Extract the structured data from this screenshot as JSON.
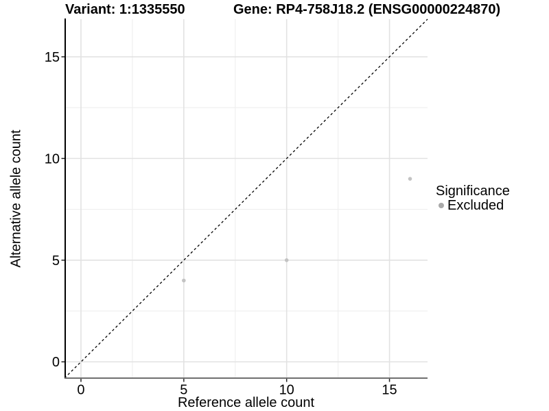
{
  "chart_data": {
    "type": "scatter",
    "title_left": "Variant: 1:1335550",
    "title_right": "Gene: RP4-758J18.2 (ENSG00000224870)",
    "xlabel": "Reference allele count",
    "ylabel": "Alternative allele count",
    "xlim": [
      -0.8,
      16.85
    ],
    "ylim": [
      -0.8,
      16.85
    ],
    "x_major_ticks": [
      0,
      5,
      10,
      15
    ],
    "y_major_ticks": [
      0,
      5,
      10,
      15
    ],
    "x_minor_ticks": [
      2.5,
      7.5,
      12.5
    ],
    "y_minor_ticks": [
      2.5,
      7.5,
      12.5
    ],
    "grid": "major and minor, light gray on white",
    "legend_position": "right",
    "identity_line": {
      "equation": "y = x",
      "style": "dashed",
      "color": "#000000"
    },
    "series": [
      {
        "name": "Excluded",
        "point_color": "#c3c3c3",
        "points": [
          {
            "x": 5,
            "y": 4
          },
          {
            "x": 10,
            "y": 5
          },
          {
            "x": 16,
            "y": 9
          }
        ]
      }
    ],
    "legend": {
      "title": "Significance",
      "items": [
        {
          "label": "Excluded",
          "swatch_color": "#a9a9a9"
        }
      ]
    },
    "style": {
      "grid_major_color": "#e2e2e2",
      "grid_minor_color": "#efefef",
      "axis_line_left_color": "#000000",
      "axis_line_bottom_color": "#6f6f6f",
      "tick_color": "#222222",
      "text_color": "#000000"
    }
  }
}
